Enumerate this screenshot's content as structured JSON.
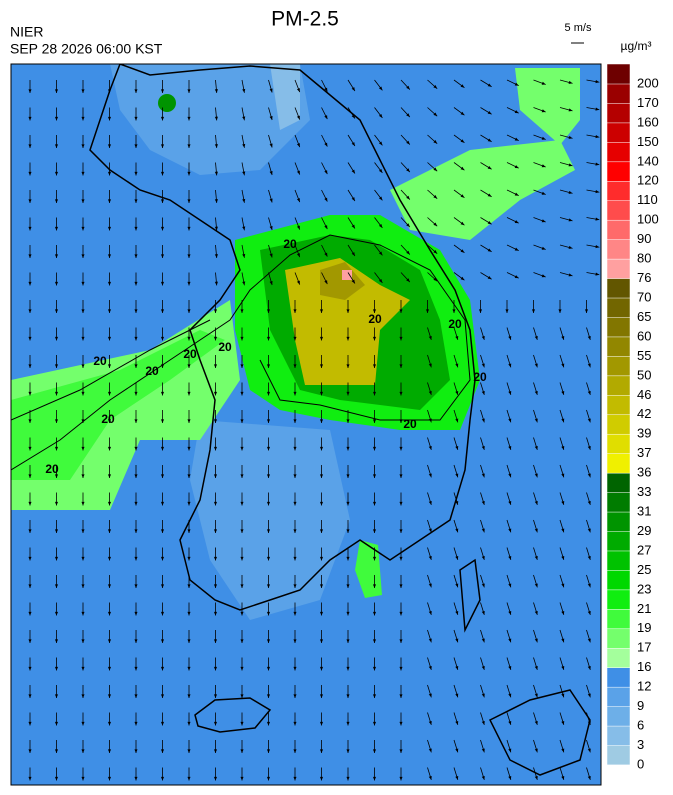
{
  "header": {
    "title": "PM-2.5",
    "source": "NIER",
    "datetime": "SEP 28 2026 06:00 KST",
    "wind_scale": "5 m/s",
    "unit": "µg/m³"
  },
  "colorbar": {
    "levels": [
      0,
      3,
      6,
      9,
      12,
      16,
      17,
      19,
      21,
      23,
      25,
      27,
      29,
      31,
      33,
      36,
      37,
      39,
      42,
      46,
      50,
      55,
      60,
      65,
      70,
      76,
      80,
      90,
      100,
      110,
      120,
      140,
      150,
      160,
      170,
      200
    ],
    "colors": [
      "#9fcbe3",
      "#86bde8",
      "#6dafe8",
      "#5aa2e8",
      "#3f8fe6",
      "#a4ff9c",
      "#74ff6c",
      "#40fb3c",
      "#10ee10",
      "#00d800",
      "#00c200",
      "#00ab00",
      "#009400",
      "#007c00",
      "#006400",
      "#f0f000",
      "#e0de00",
      "#d0cc00",
      "#c2bb00",
      "#b2aa00",
      "#a29800",
      "#928700",
      "#827600",
      "#726600",
      "#625600",
      "#ffa0a0",
      "#ff8686",
      "#ff6a6a",
      "#ff4c4c",
      "#ff2c2c",
      "#ff0000",
      "#e60000",
      "#cc0000",
      "#b40000",
      "#9a0000",
      "#6e0000"
    ]
  },
  "contour_labels": [
    "20",
    "20",
    "20",
    "20",
    "20",
    "20",
    "20",
    "20",
    "20",
    "20",
    "20"
  ]
}
